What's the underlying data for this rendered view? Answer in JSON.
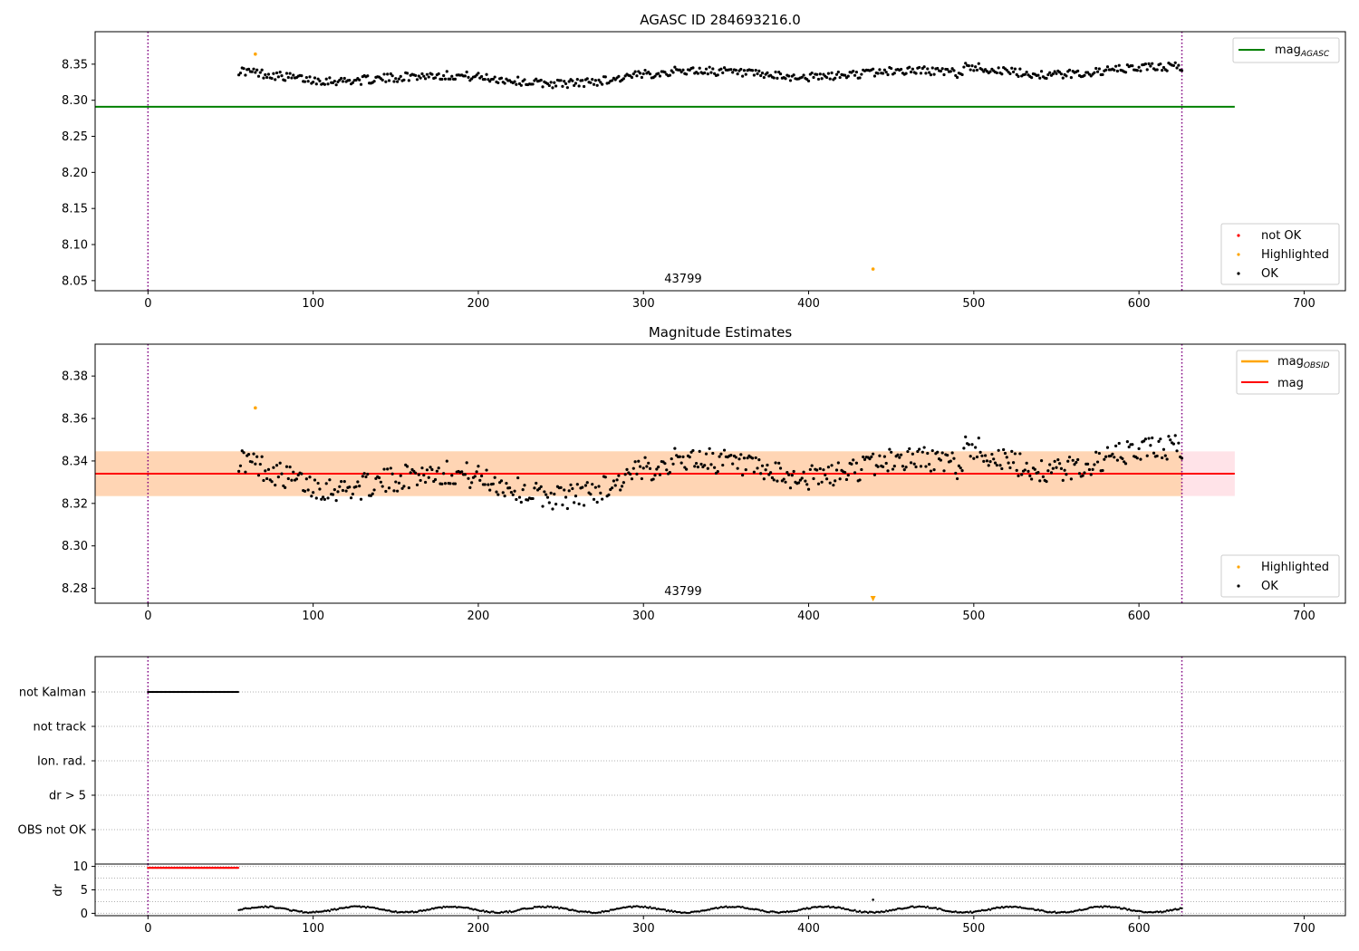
{
  "chart_data": [
    {
      "type": "scatter",
      "title": "AGASC ID 284693216.0",
      "xlim": [
        -32,
        725
      ],
      "ylim": [
        8.036,
        8.395
      ],
      "x_ticks": [
        0,
        100,
        200,
        300,
        400,
        500,
        600,
        700
      ],
      "y_ticks": [
        "8.05",
        "8.10",
        "8.15",
        "8.20",
        "8.25",
        "8.30",
        "8.35"
      ],
      "y_tick_values": [
        8.05,
        8.1,
        8.15,
        8.2,
        8.25,
        8.3,
        8.35
      ],
      "reference_line": {
        "label": "mag",
        "subscript": "AGASC",
        "value": 8.291,
        "x_range": [
          -32,
          658
        ],
        "color": "#008000"
      },
      "obsid_boundaries": [
        0,
        626
      ],
      "obsid_label": {
        "text": "43799",
        "x": 313
      },
      "highlighted_points": [
        {
          "x": 65,
          "y": 8.364
        },
        {
          "x": 439,
          "y": 8.066
        }
      ],
      "ok_series": {
        "x_start": 55,
        "x_end": 626,
        "step": 1.0,
        "base": 8.333,
        "drift_after_x": 493,
        "drift_amount": 0.012,
        "wave_amp": 0.011,
        "noise_amp": 0.006
      },
      "legend_top": [
        {
          "label": "mag",
          "subscript": "AGASC",
          "color": "#008000"
        }
      ],
      "legend_bottom": [
        {
          "label": "not OK",
          "color": "#ff0000"
        },
        {
          "label": "Highlighted",
          "color": "#ffa500"
        },
        {
          "label": "OK",
          "color": "#000000"
        }
      ]
    },
    {
      "type": "scatter",
      "title": "Magnitude Estimates",
      "xlim": [
        -32,
        725
      ],
      "ylim": [
        8.273,
        8.395
      ],
      "x_ticks": [
        0,
        100,
        200,
        300,
        400,
        500,
        600,
        700
      ],
      "y_ticks": [
        "8.28",
        "8.30",
        "8.32",
        "8.34",
        "8.36",
        "8.38"
      ],
      "y_tick_values": [
        8.28,
        8.3,
        8.32,
        8.34,
        8.36,
        8.38
      ],
      "mag_line": {
        "label": "mag",
        "value": 8.334,
        "color": "#ff0000",
        "x_range": [
          -32,
          658
        ]
      },
      "mag_band": {
        "low": 8.3235,
        "high": 8.3445,
        "x_range": [
          -32,
          658
        ],
        "color": "#ffc0cb"
      },
      "obsid_band": {
        "low": 8.3235,
        "high": 8.3445,
        "x_range": [
          -32,
          626
        ],
        "color": "#ffa500",
        "label": "mag",
        "subscript": "OBSID"
      },
      "obsid_boundaries": [
        0,
        626
      ],
      "obsid_label": {
        "text": "43799",
        "x": 313
      },
      "highlighted_points": [
        {
          "x": 65,
          "y": 8.365
        }
      ],
      "highlighted_offscale": {
        "x": 439
      },
      "legend_top": [
        {
          "label": "mag",
          "subscript": "OBSID",
          "color": "#ffa500"
        },
        {
          "label": "mag",
          "color": "#ff0000"
        }
      ],
      "legend_bottom": [
        {
          "label": "Highlighted",
          "color": "#ffa500"
        },
        {
          "label": "OK",
          "color": "#000000"
        }
      ]
    },
    {
      "type": "scatter",
      "xlim": [
        -32,
        725
      ],
      "flag_labels": [
        "not Kalman",
        "not track",
        "Ion. rad.",
        "dr > 5",
        "OBS not OK"
      ],
      "flag_segments": [
        {
          "flag": "not Kalman",
          "x_start": 0,
          "x_end": 55
        }
      ],
      "obsid_boundaries": [
        0,
        626
      ]
    },
    {
      "type": "scatter",
      "ylabel": "dr",
      "xlim": [
        -32,
        725
      ],
      "ylim": [
        -0.5,
        10.5
      ],
      "x_ticks": [
        0,
        100,
        200,
        300,
        400,
        500,
        600,
        700
      ],
      "y_ticks": [
        "0",
        "5",
        "10"
      ],
      "y_tick_values": [
        0,
        5,
        10
      ],
      "not_ok_range": {
        "x_start": 0,
        "x_end": 55,
        "y": 9.7
      },
      "ok_range": {
        "x_start": 55,
        "x_end": 626
      },
      "spike": {
        "x": 439,
        "y": 2.9
      },
      "obsid_boundaries": [
        0,
        626
      ]
    }
  ]
}
